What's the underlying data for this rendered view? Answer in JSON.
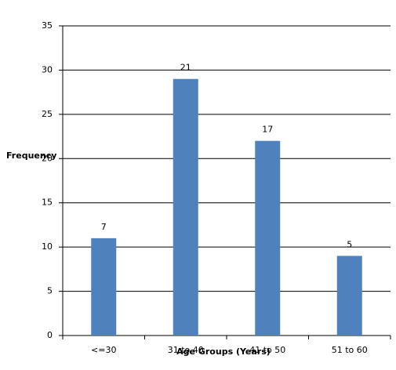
{
  "chart_data": {
    "type": "bar",
    "x_label": "Age Groups (Years)",
    "y_label": "Frequency",
    "categories": [
      "<=30",
      "31 to 40",
      "41 to 50",
      "51 to 60"
    ],
    "values": [
      11,
      29,
      22,
      9
    ],
    "annotations": [
      "7",
      "21",
      "17",
      "5"
    ],
    "color": "#4f81bd",
    "ylim": [
      0,
      35
    ],
    "yticks": [
      0,
      5,
      10,
      15,
      20,
      25,
      30,
      35
    ],
    "grid": true
  }
}
